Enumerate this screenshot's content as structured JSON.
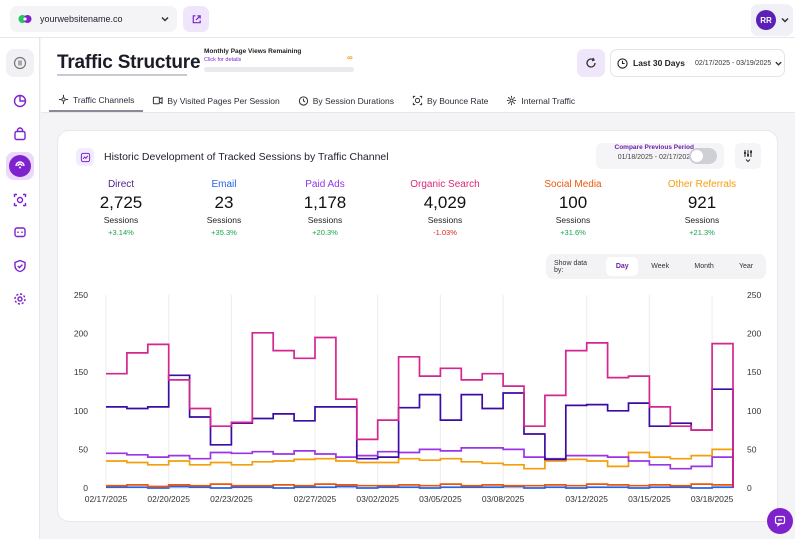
{
  "topbar": {
    "site_name": "yourwebsitename.co",
    "user_initials": "RR"
  },
  "header": {
    "title": "Traffic Structure",
    "quota_label": "Monthly Page Views Remaining",
    "quota_link": "Click for details",
    "quota_value": "∞",
    "range_label": "Last 30 Days",
    "range_dates": "02/17/2025 - 03/19/2025"
  },
  "tabs": [
    {
      "label": "Traffic Channels"
    },
    {
      "label": "By Visited Pages Per Session"
    },
    {
      "label": "By Session Durations"
    },
    {
      "label": "By Bounce Rate"
    },
    {
      "label": "Internal Traffic"
    }
  ],
  "card": {
    "title": "Historic Development of Tracked Sessions by Traffic Channel",
    "compare_label": "Compare Previous Period",
    "compare_dates": "01/18/2025 - 02/17/2025",
    "granularity_label": "Show data by:",
    "granularity": [
      "Day",
      "Week",
      "Month",
      "Year"
    ],
    "granularity_selected": "Day"
  },
  "stats": [
    {
      "name": "Direct",
      "value": "2,725",
      "unit": "Sessions",
      "change": "+3.14%",
      "color": "#4c1d95",
      "change_color": "#16a34a"
    },
    {
      "name": "Email",
      "value": "23",
      "unit": "Sessions",
      "change": "+35.3%",
      "color": "#2563eb",
      "change_color": "#16a34a"
    },
    {
      "name": "Paid Ads",
      "value": "1,178",
      "unit": "Sessions",
      "change": "+20.3%",
      "color": "#9333ea",
      "change_color": "#16a34a"
    },
    {
      "name": "Organic Search",
      "value": "4,029",
      "unit": "Sessions",
      "change": "-1.03%",
      "color": "#db2777",
      "change_color": "#dc2626"
    },
    {
      "name": "Social Media",
      "value": "100",
      "unit": "Sessions",
      "change": "+31.6%",
      "color": "#ea580c",
      "change_color": "#16a34a"
    },
    {
      "name": "Other Referrals",
      "value": "921",
      "unit": "Sessions",
      "change": "+21.3%",
      "color": "#f59e0b",
      "change_color": "#16a34a"
    }
  ],
  "chart_data": {
    "type": "line",
    "step": true,
    "ylim": [
      0,
      250
    ],
    "y_ticks": [
      "0",
      "50",
      "100",
      "150",
      "200",
      "250"
    ],
    "x_labels": [
      "02/17/2025",
      "02/20/2025",
      "02/23/2025",
      "02/27/2025",
      "03/02/2025",
      "03/05/2025",
      "03/08/2025",
      "03/12/2025",
      "03/15/2025",
      "03/18/2025"
    ],
    "x_label_index": [
      0,
      3,
      6,
      10,
      13,
      16,
      19,
      23,
      26,
      29
    ],
    "n_days": 30,
    "series": [
      {
        "name": "Organic Search",
        "color": "#d4268f",
        "values": [
          148,
          175,
          186,
          140,
          103,
          80,
          85,
          201,
          178,
          168,
          195,
          115,
          63,
          88,
          170,
          145,
          155,
          140,
          148,
          132,
          80,
          120,
          178,
          188,
          143,
          145,
          105,
          80,
          75,
          187
        ]
      },
      {
        "name": "Direct",
        "color": "#3b0ca3",
        "values": [
          105,
          103,
          105,
          146,
          92,
          56,
          84,
          90,
          96,
          87,
          105,
          105,
          38,
          40,
          104,
          121,
          88,
          121,
          103,
          123,
          70,
          37,
          107,
          108,
          100,
          110,
          80,
          84,
          75,
          128
        ]
      },
      {
        "name": "Paid Ads",
        "color": "#9b34e6",
        "values": [
          45,
          43,
          40,
          42,
          38,
          46,
          45,
          47,
          44,
          48,
          44,
          40,
          42,
          47,
          46,
          50,
          48,
          52,
          52,
          50,
          40,
          38,
          42,
          42,
          40,
          35,
          30,
          25,
          28,
          40
        ]
      },
      {
        "name": "Other Referrals",
        "color": "#f59e0b",
        "values": [
          35,
          33,
          30,
          35,
          30,
          33,
          30,
          34,
          35,
          37,
          38,
          35,
          33,
          33,
          38,
          36,
          38,
          34,
          32,
          30,
          25,
          35,
          37,
          35,
          28,
          46,
          40,
          38,
          42,
          50
        ]
      },
      {
        "name": "Social Media",
        "color": "#ea580c",
        "values": [
          3,
          4,
          2,
          4,
          3,
          5,
          3,
          3,
          4,
          3,
          5,
          4,
          3,
          3,
          4,
          3,
          5,
          3,
          4,
          3,
          3,
          4,
          3,
          5,
          4,
          3,
          4,
          3,
          5,
          4
        ]
      },
      {
        "name": "Email",
        "color": "#2563eb",
        "values": [
          1,
          1,
          0,
          2,
          1,
          0,
          1,
          1,
          0,
          1,
          1,
          2,
          0,
          1,
          1,
          0,
          1,
          1,
          1,
          2,
          0,
          1,
          0,
          1,
          1,
          0,
          1,
          1,
          0,
          1
        ]
      }
    ]
  }
}
